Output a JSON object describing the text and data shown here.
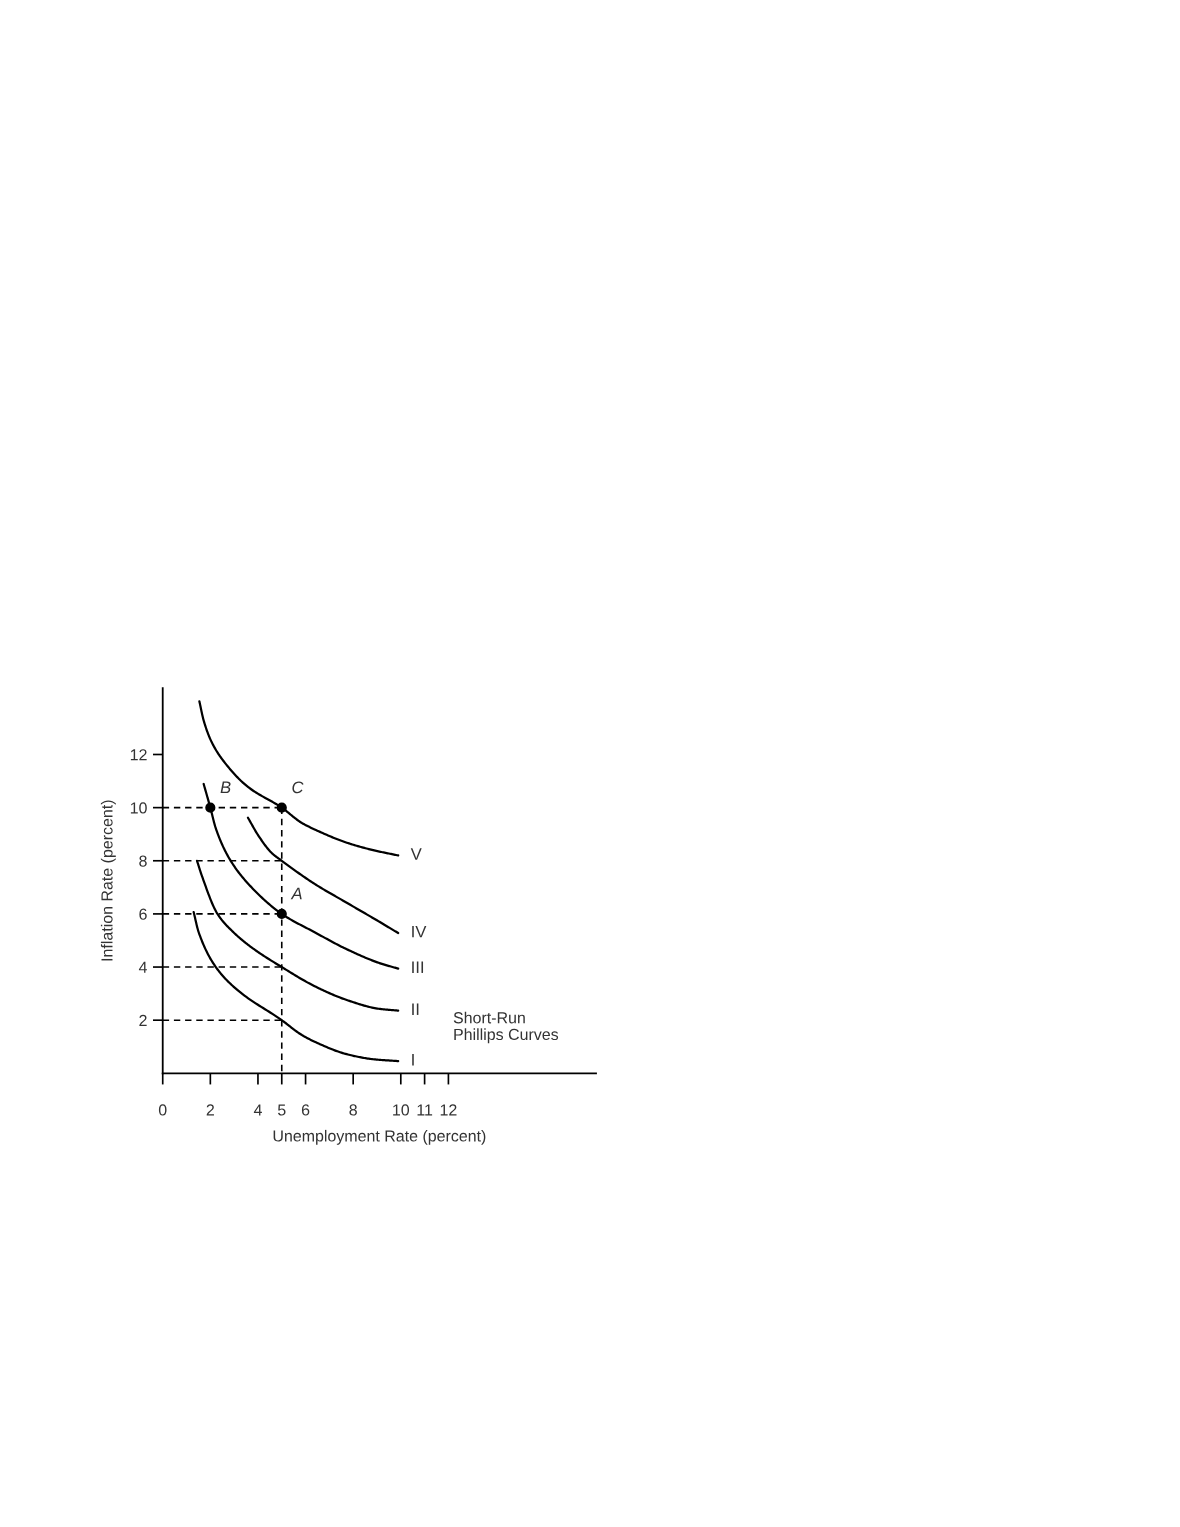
{
  "chart_data": {
    "type": "line",
    "xlabel": "Unemployment Rate (percent)",
    "ylabel": "Inflation Rate (percent)",
    "xlim": [
      0,
      18.2
    ],
    "ylim": [
      0,
      14.5
    ],
    "xticks": [
      0,
      2,
      4,
      5,
      6,
      8,
      10,
      11,
      12
    ],
    "yticks": [
      2,
      4,
      6,
      8,
      10,
      12
    ],
    "marker": "none",
    "line_style": "solid",
    "annotations": [
      "Short-Run\nPhillips Curves"
    ],
    "series": [
      {
        "type": "line",
        "line_style": "dashed",
        "color": "#000000",
        "x": [
          0,
          5
        ],
        "values": [
          10,
          10
        ]
      },
      {
        "type": "line",
        "line_style": "dashed",
        "color": "#000000",
        "x": [
          0,
          5
        ],
        "values": [
          8,
          8
        ]
      },
      {
        "type": "line",
        "line_style": "dashed",
        "color": "#000000",
        "x": [
          0,
          5
        ],
        "values": [
          6,
          6
        ]
      },
      {
        "type": "line",
        "line_style": "dashed",
        "color": "#000000",
        "x": [
          0,
          5
        ],
        "values": [
          4,
          4
        ]
      },
      {
        "type": "line",
        "line_style": "dashed",
        "color": "#000000",
        "x": [
          0,
          5
        ],
        "values": [
          2,
          2
        ]
      },
      {
        "type": "line",
        "line_style": "dashed",
        "color": "#000000",
        "x": [
          5,
          5
        ],
        "values": [
          10,
          0
        ]
      },
      {
        "name": "V",
        "color": "#000000",
        "x": [
          1.54,
          1.72,
          2.07,
          2.68,
          3.58,
          5,
          5.83,
          6.38,
          7.73,
          8.84,
          9.89
        ],
        "values": [
          14.0,
          13.28,
          12.44,
          11.61,
          10.78,
          10,
          9.43,
          9.18,
          8.68,
          8.4,
          8.2
        ]
      },
      {
        "name": "IV",
        "color": "#000000",
        "x": [
          3.58,
          4.03,
          4.57,
          5,
          6.38,
          7.73,
          9.07,
          9.89
        ],
        "values": [
          9.62,
          8.93,
          8.3,
          8,
          7.13,
          6.42,
          5.72,
          5.28
        ]
      },
      {
        "name": "III",
        "color": "#000000",
        "x": [
          1.72,
          2,
          2.23,
          2.82,
          3.73,
          5,
          6.38,
          7.73,
          9.07,
          9.89
        ],
        "values": [
          10.89,
          10,
          9.22,
          8.05,
          7.0,
          6,
          5.31,
          4.67,
          4.16,
          3.94
        ]
      },
      {
        "name": "II",
        "color": "#000000",
        "x": [
          1.44,
          1.65,
          2.3,
          2.97,
          3.73,
          5,
          6.38,
          7.73,
          9.07,
          9.89
        ],
        "values": [
          8.0,
          7.42,
          6.0,
          5.31,
          4.74,
          4,
          3.28,
          2.76,
          2.43,
          2.36
        ]
      },
      {
        "name": "I",
        "color": "#000000",
        "x": [
          1.3,
          1.51,
          2.23,
          3.12,
          5,
          5.83,
          6.38,
          7.73,
          8.84,
          9.89
        ],
        "values": [
          6.07,
          5.31,
          4.0,
          3.15,
          2,
          1.45,
          1.19,
          0.72,
          0.53,
          0.46
        ]
      },
      {
        "type": "scatter",
        "marker": "circle",
        "color": "#000000",
        "x": [
          2,
          5,
          5
        ],
        "values": [
          10,
          10,
          6
        ],
        "value_labels": [
          "B",
          "C",
          "A"
        ]
      }
    ]
  }
}
